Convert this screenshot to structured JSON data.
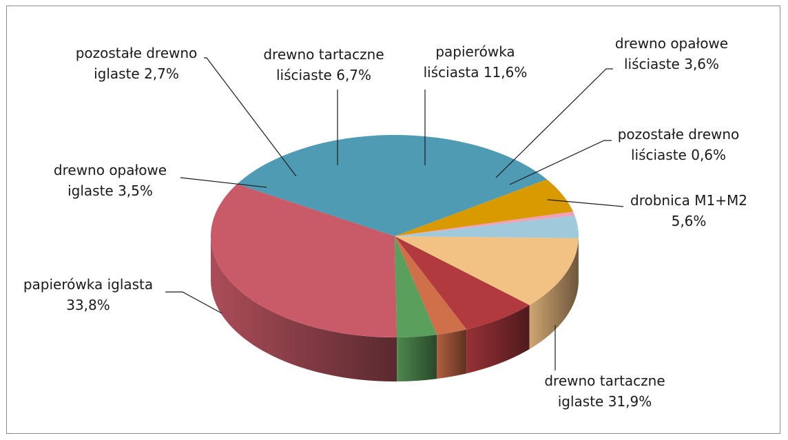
{
  "chart_data": {
    "type": "pie",
    "title": "",
    "slices": [
      {
        "name": "drobnica M1+M2",
        "value": 5.6,
        "color": "#d99a00",
        "label_lines": [
          "drobnica M1+M2",
          "5,6%"
        ]
      },
      {
        "name": "drewno tartaczne iglaste",
        "value": 31.9,
        "color": "#4f9bb3",
        "label_lines": [
          "drewno tartaczne",
          "iglaste 31,9%"
        ]
      },
      {
        "name": "papierówka iglasta",
        "value": 33.8,
        "color": "#c95b68",
        "label_lines": [
          "papierówka iglasta",
          "33,8%"
        ]
      },
      {
        "name": "drewno opałowe iglaste",
        "value": 3.5,
        "color": "#5aa05c",
        "label_lines": [
          "drewno opałowe",
          "iglaste 3,5%"
        ]
      },
      {
        "name": "pozostałe drewno iglaste",
        "value": 2.7,
        "color": "#d0704a",
        "label_lines": [
          "pozostałe drewno",
          "iglaste 2,7%"
        ]
      },
      {
        "name": "drewno tartaczne liściaste",
        "value": 6.7,
        "color": "#b03a3e",
        "label_lines": [
          "drewno tartaczne",
          "liściaste 6,7%"
        ]
      },
      {
        "name": "papierówka liściasta",
        "value": 11.6,
        "color": "#f2c285",
        "label_lines": [
          "papierówka",
          "liściasta 11,6%"
        ]
      },
      {
        "name": "drewno opałowe liściaste",
        "value": 3.6,
        "color": "#9ecadb",
        "label_lines": [
          "drewno opałowe",
          "liściaste 3,6%"
        ]
      },
      {
        "name": "pozostałe drewno liściaste",
        "value": 0.6,
        "color": "#f0a0b8",
        "label_lines": [
          "pozostałe drewno",
          "liściaste 0,6%"
        ]
      }
    ],
    "style": "3d-pie",
    "legend": "none"
  }
}
